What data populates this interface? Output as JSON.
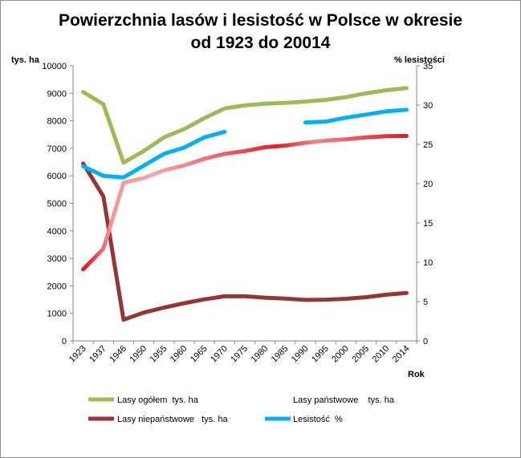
{
  "chart_data": {
    "type": "line",
    "title": "Powierzchnia lasów i lesistość w Polsce w okresie",
    "subtitle": "od 1923 do 20014",
    "ylabel": "tys. ha",
    "y2label": "% lesistości",
    "xlabel": "Rok",
    "categories": [
      "1923",
      "1937",
      "1946",
      "1950",
      "1955",
      "1960",
      "1965",
      "1970",
      "1975",
      "1980",
      "1985",
      "1990",
      "1995",
      "2000",
      "2005",
      "2010",
      "2014"
    ],
    "ylim": [
      0,
      10000
    ],
    "yticks": [
      0,
      1000,
      2000,
      3000,
      4000,
      5000,
      6000,
      7000,
      8000,
      9000,
      10000
    ],
    "y2lim": [
      0,
      35
    ],
    "y2ticks": [
      0,
      5,
      10,
      15,
      20,
      25,
      30,
      35
    ],
    "grid": false,
    "legend_position": "bottom",
    "series": [
      {
        "name": "Lasy ogółem  tys. ha",
        "axis": "left",
        "color": "#9bbb59",
        "style": "solid",
        "values": [
          9050,
          8600,
          6480,
          6900,
          7400,
          7700,
          8100,
          8450,
          8560,
          8620,
          8650,
          8700,
          8760,
          8860,
          9000,
          9110,
          9190
        ]
      },
      {
        "name": "Lasy państwowe    tys. ha",
        "axis": "left",
        "color": "#e31e24",
        "style": "gradient",
        "values": [
          2600,
          3350,
          5750,
          5920,
          6200,
          6380,
          6620,
          6800,
          6900,
          7040,
          7100,
          7200,
          7280,
          7330,
          7400,
          7440,
          7450
        ]
      },
      {
        "name": "Lasy niepaństwowe   tys. ha",
        "axis": "left",
        "color": "#943634",
        "style": "solid",
        "values": [
          6450,
          5250,
          770,
          1030,
          1210,
          1370,
          1510,
          1620,
          1620,
          1570,
          1540,
          1490,
          1500,
          1530,
          1590,
          1680,
          1740
        ]
      },
      {
        "name": "Lesistość  %",
        "axis": "right",
        "color": "#00b0f0",
        "style": "solid",
        "values": [
          22.2,
          21.0,
          20.8,
          22.3,
          23.8,
          24.6,
          25.9,
          26.6,
          null,
          null,
          null,
          27.8,
          27.9,
          28.4,
          28.8,
          29.2,
          29.4
        ]
      }
    ]
  }
}
